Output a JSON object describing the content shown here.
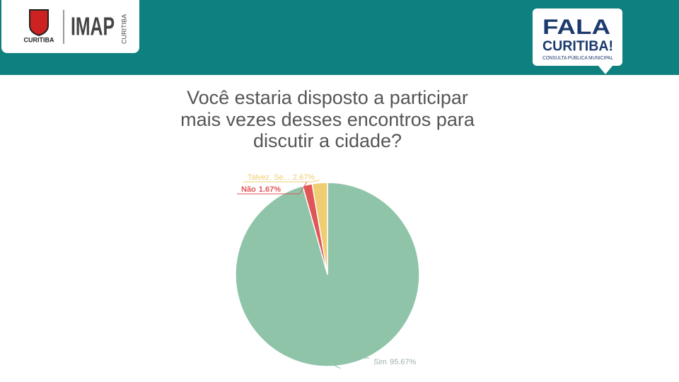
{
  "header": {
    "logo_left_city": "CURITIBA",
    "logo_imap": "IMAP",
    "logo_imap_sub": "CURITIBA",
    "logo_right_line1": "FALA",
    "logo_right_line2": "CURITIBA!",
    "logo_right_line3": "CONSULTA PÚBLICA MUNICIPAL"
  },
  "chart_data": {
    "type": "pie",
    "title": [
      "Você estaria disposto a participar",
      "mais vezes desses encontros para",
      "discutir a cidade?"
    ],
    "categories": [
      "Sim",
      "Não",
      "Talvez. Se..."
    ],
    "values": [
      95.67,
      1.67,
      2.67
    ],
    "value_labels": [
      "95.67%",
      "1.67%",
      "2.67%"
    ],
    "colors": [
      "#8fc4a9",
      "#e05656",
      "#f0cc73"
    ]
  }
}
